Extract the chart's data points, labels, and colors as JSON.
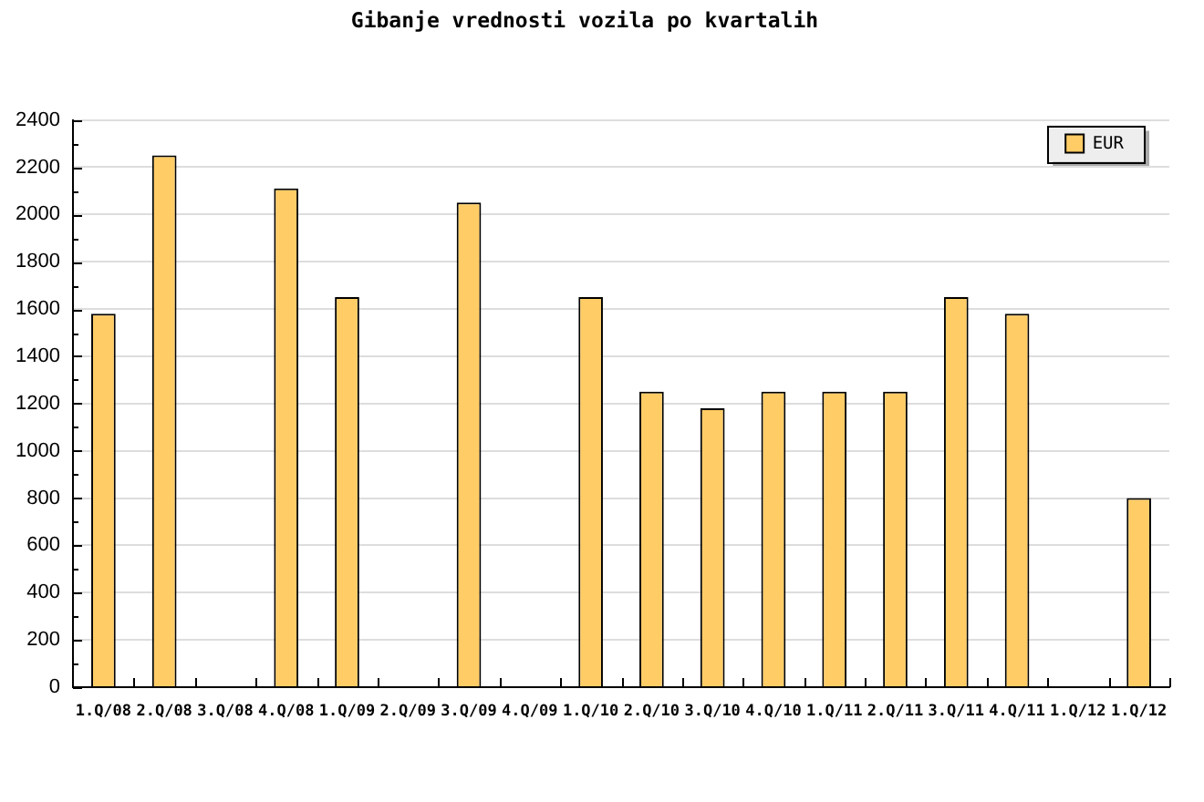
{
  "chart_data": {
    "type": "bar",
    "title": "Gibanje vrednosti vozila po kvartalih",
    "categories": [
      "1.Q/08",
      "2.Q/08",
      "3.Q/08",
      "4.Q/08",
      "1.Q/09",
      "2.Q/09",
      "3.Q/09",
      "4.Q/09",
      "1.Q/10",
      "2.Q/10",
      "3.Q/10",
      "4.Q/10",
      "1.Q/11",
      "2.Q/11",
      "3.Q/11",
      "4.Q/11",
      "1.Q/12",
      "1.Q/12"
    ],
    "series": [
      {
        "name": "EUR",
        "color": "#ffcc66",
        "values": [
          1580,
          2250,
          null,
          2110,
          1650,
          null,
          2050,
          null,
          1650,
          1250,
          1180,
          1250,
          1250,
          1250,
          1650,
          1580,
          null,
          800
        ]
      }
    ],
    "ylim": [
      0,
      2400
    ],
    "yticks": [
      0,
      {
        "value": 100,
        "label": null
      },
      200,
      {
        "value": 300,
        "label": null
      },
      400,
      {
        "value": 500,
        "label": null
      },
      600,
      {
        "value": 700,
        "label": null
      },
      800,
      {
        "value": 900,
        "label": null
      },
      1000,
      {
        "value": 1100,
        "label": null
      },
      1200,
      {
        "value": 1300,
        "label": null
      },
      1400,
      {
        "value": 1500,
        "label": null
      },
      1600,
      {
        "value": 1700,
        "label": null
      },
      1800,
      {
        "value": 1900,
        "label": null
      },
      2000,
      {
        "value": 2100,
        "label": null
      },
      2200,
      {
        "value": 2300,
        "label": null
      },
      2400
    ],
    "grid": "y",
    "legend": "top right"
  }
}
